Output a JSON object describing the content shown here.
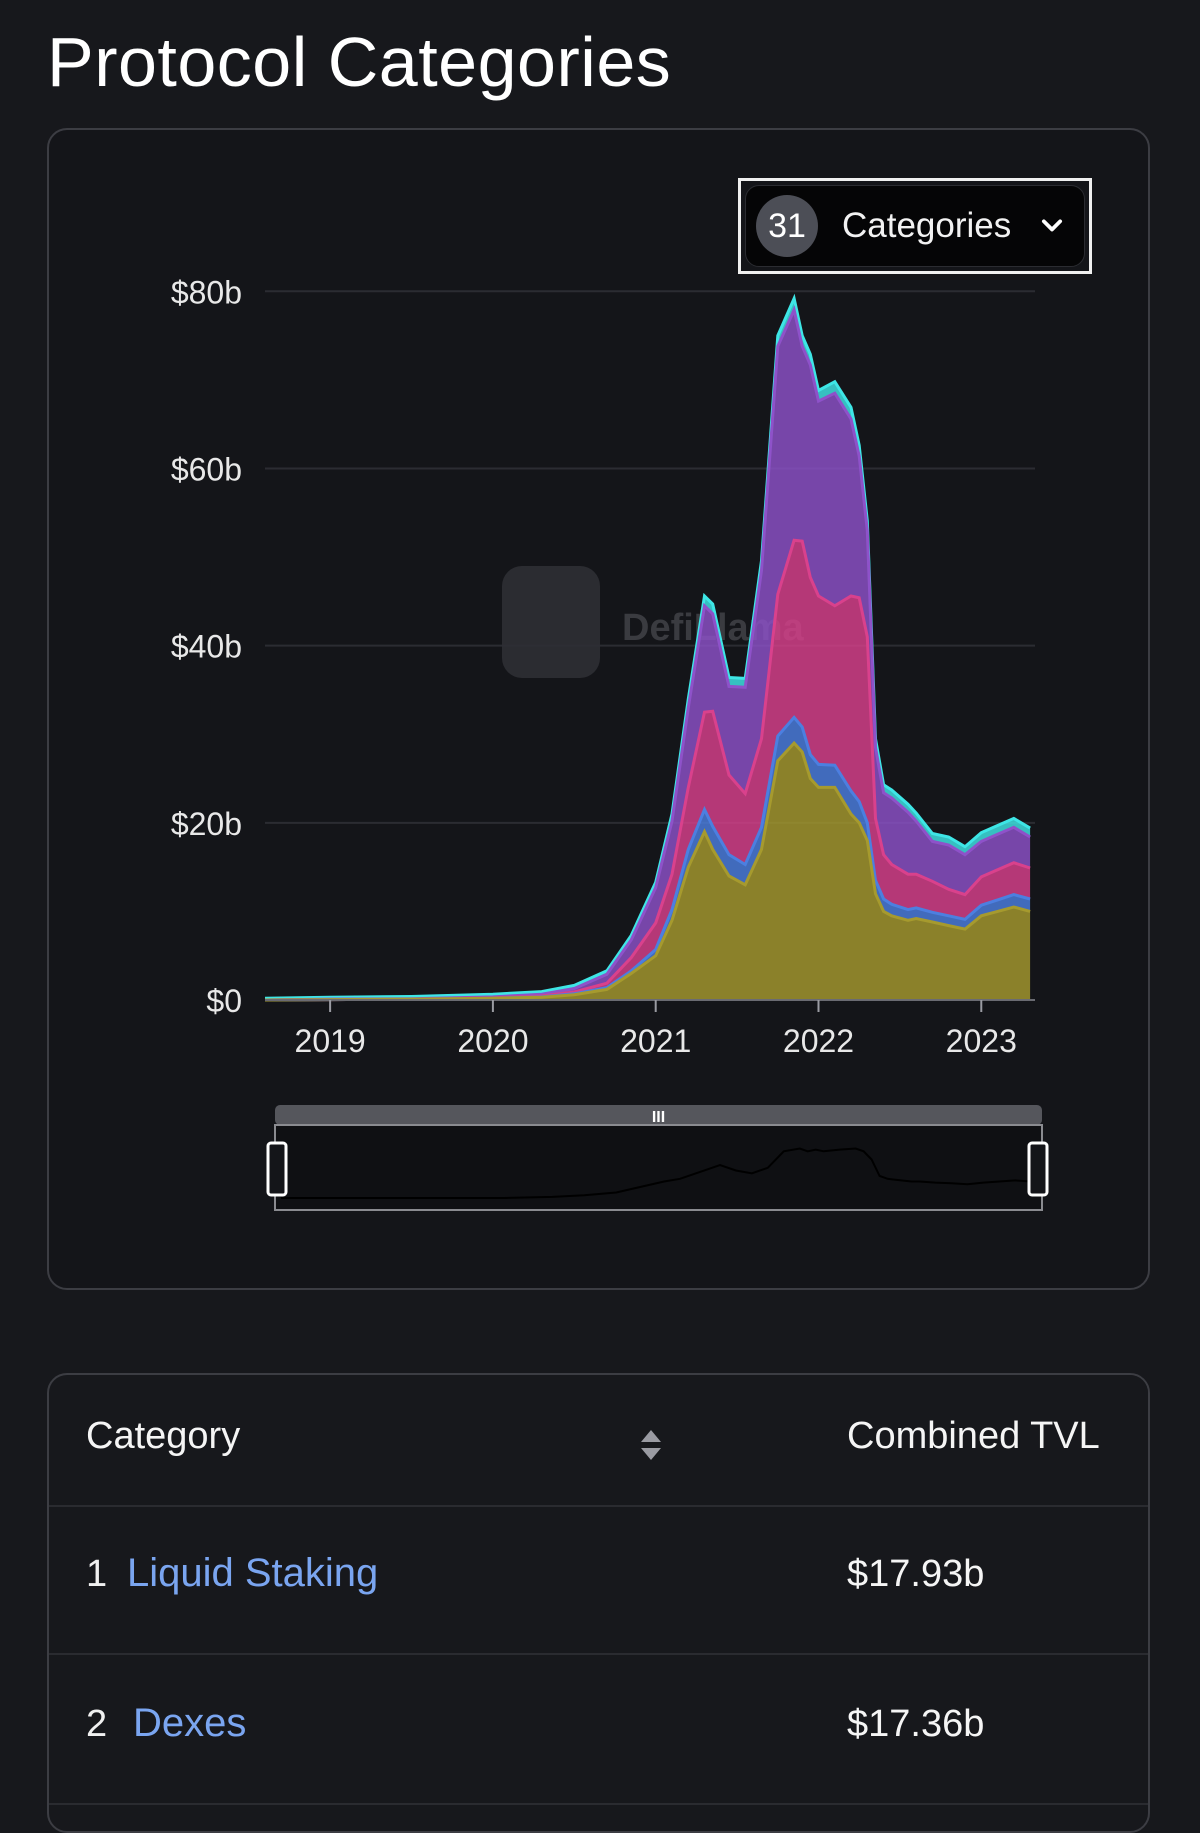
{
  "page": {
    "title": "Protocol Categories"
  },
  "category_select": {
    "count": "31",
    "label": "Categories"
  },
  "watermark": "DefiLlama",
  "colors": {
    "purple": "#8e52c9",
    "pink": "#d9418c",
    "blue": "#4c7fe0",
    "olive": "#a69a2e",
    "orange": "#c9882f",
    "cyan": "#3ee6e6",
    "accent_link": "#7aa5f0"
  },
  "chart_data": {
    "type": "area",
    "title": "",
    "ylim": [
      0,
      85
    ],
    "xlim": [
      2018.6,
      2023.33
    ],
    "y_ticks": [
      {
        "value": 0,
        "label": "$0"
      },
      {
        "value": 20,
        "label": "$20b"
      },
      {
        "value": 40,
        "label": "$40b"
      },
      {
        "value": 60,
        "label": "$60b"
      },
      {
        "value": 80,
        "label": "$80b"
      }
    ],
    "x_ticks": [
      {
        "value": 2019,
        "label": "2019"
      },
      {
        "value": 2020,
        "label": "2020"
      },
      {
        "value": 2021,
        "label": "2021"
      },
      {
        "value": 2022,
        "label": "2022"
      },
      {
        "value": 2023,
        "label": "2023"
      }
    ],
    "grid": true,
    "x": [
      2018.6,
      2019.0,
      2019.5,
      2020.0,
      2020.3,
      2020.5,
      2020.7,
      2020.85,
      2021.0,
      2021.1,
      2021.2,
      2021.3,
      2021.35,
      2021.45,
      2021.55,
      2021.65,
      2021.75,
      2021.85,
      2021.9,
      2021.95,
      2022.0,
      2022.1,
      2022.2,
      2022.25,
      2022.3,
      2022.35,
      2022.4,
      2022.45,
      2022.55,
      2022.6,
      2022.7,
      2022.8,
      2022.9,
      2023.0,
      2023.1,
      2023.2,
      2023.3
    ],
    "series": [
      {
        "color": "#a69a2e",
        "values": [
          0,
          0.05,
          0.1,
          0.2,
          0.3,
          0.6,
          1.2,
          3,
          5,
          9,
          15,
          19,
          17,
          14,
          13,
          17,
          27,
          29,
          28,
          25,
          24,
          24,
          21,
          20,
          18,
          12,
          10,
          9.5,
          9,
          9.2,
          8.8,
          8.4,
          8,
          9.5,
          10,
          10.5,
          10
        ]
      },
      {
        "color": "#4c7fe0",
        "values": [
          0,
          0,
          0,
          0,
          0.05,
          0.1,
          0.2,
          0.3,
          0.7,
          1.2,
          2,
          2.5,
          2.6,
          2.4,
          2.3,
          2.5,
          2.8,
          2.9,
          2.8,
          2.7,
          2.6,
          2.5,
          2.6,
          2.4,
          2.0,
          1.5,
          1.4,
          1.3,
          1.2,
          1.2,
          1.1,
          1.1,
          1.1,
          1.2,
          1.3,
          1.4,
          1.4
        ]
      },
      {
        "color": "#d9418c",
        "values": [
          0,
          0,
          0,
          0.05,
          0.1,
          0.2,
          0.5,
          1.5,
          3,
          4,
          7,
          11,
          13,
          9,
          8,
          10,
          16,
          20,
          21,
          20,
          19,
          18,
          22,
          23,
          21,
          7,
          5,
          4.5,
          4,
          3.8,
          3.5,
          3.0,
          2.8,
          3.2,
          3.4,
          3.6,
          3.5
        ]
      },
      {
        "color": "#8e52c9",
        "values": [
          0,
          0.05,
          0.05,
          0.1,
          0.2,
          0.4,
          1.0,
          2.0,
          4,
          6,
          9,
          12,
          11,
          10,
          12,
          19,
          28,
          26,
          22,
          24,
          22,
          24,
          20,
          16,
          12,
          8,
          7,
          7.5,
          7,
          6,
          4.5,
          5,
          4.5,
          4,
          4,
          4,
          3.5
        ]
      },
      {
        "color": "#3ee6e6",
        "values": [
          0.2,
          0.2,
          0.25,
          0.3,
          0.3,
          0.35,
          0.4,
          0.5,
          0.6,
          0.8,
          1.0,
          1.1,
          1.1,
          1.0,
          1.0,
          1.1,
          1.2,
          1.3,
          1.2,
          1.2,
          1.2,
          1.3,
          1.3,
          1.2,
          1.1,
          1.0,
          0.9,
          0.9,
          0.9,
          0.9,
          0.9,
          0.9,
          0.9,
          1.0,
          1.0,
          1.0,
          1.0
        ]
      }
    ]
  },
  "range_slider": {
    "grip_label": "III",
    "overview": [
      0,
      0,
      0,
      0,
      0.02,
      0.05,
      0.1,
      0.2,
      0.3,
      0.35,
      0.45,
      0.55,
      0.6,
      0.5,
      0.45,
      0.55,
      0.85,
      0.9,
      0.85,
      0.88,
      0.85,
      0.88,
      0.9,
      0.85,
      0.7,
      0.4,
      0.35,
      0.33,
      0.3,
      0.3,
      0.28,
      0.27,
      0.25,
      0.28,
      0.3,
      0.32,
      0.3
    ],
    "start": 0,
    "end": 1
  },
  "table": {
    "headers": {
      "category": "Category",
      "combined_tvl": "Combined TVL"
    },
    "rows": [
      {
        "index": "1",
        "name": "Liquid Staking",
        "tvl": "$17.93b"
      },
      {
        "index": "2",
        "name": "Dexes",
        "tvl": "$17.36b"
      }
    ]
  }
}
